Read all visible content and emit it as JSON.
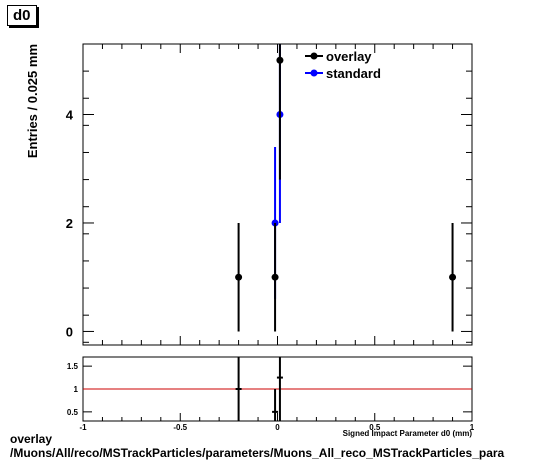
{
  "panel_title": "d0",
  "footer": {
    "line1": "overlay",
    "line2": "/Muons/All/reco/MSTrackParticles/parameters/Muons_All_reco_MSTrackParticles_para"
  },
  "chart_data": [
    {
      "type": "scatter",
      "title": "",
      "ylabel": "Entries / 0.025 mm",
      "xlim": [
        -1,
        1
      ],
      "ylim": [
        -0.25,
        5.3
      ],
      "yticks": [
        0,
        2,
        4
      ],
      "grid": false,
      "legend": {
        "position": "top-right",
        "entries": [
          "overlay",
          "standard"
        ]
      },
      "series": [
        {
          "name": "overlay",
          "color": "#000000",
          "points": [
            {
              "x": -0.2,
              "y": 1,
              "err": 1
            },
            {
              "x": -0.0125,
              "y": 1,
              "err": 1
            },
            {
              "x": 0.0125,
              "y": 5,
              "err": 2.2
            },
            {
              "x": 0.9,
              "y": 1,
              "err": 1
            }
          ]
        },
        {
          "name": "standard",
          "color": "#0000ff",
          "points": [
            {
              "x": -0.0125,
              "y": 2,
              "err": 1.4
            },
            {
              "x": 0.0125,
              "y": 4,
              "err": 2
            }
          ]
        }
      ]
    },
    {
      "type": "scatter",
      "title": "",
      "xlabel": "Signed Impact Parameter d0 (mm)",
      "xlim": [
        -1,
        1
      ],
      "xticks": [
        -1,
        -0.5,
        0,
        0.5,
        1
      ],
      "xtick_labels": [
        "-1",
        "-0.5",
        "0",
        "0.5",
        "1"
      ],
      "ylim": [
        0.3,
        1.7
      ],
      "yticks": [
        0.5,
        1,
        1.5
      ],
      "ytick_labels": [
        "0.5",
        "1",
        "1.5"
      ],
      "reference_line": {
        "y": 1,
        "color": "#cc0000"
      },
      "points": [
        {
          "x": -0.2,
          "y": 1,
          "err": 1
        },
        {
          "x": -0.0125,
          "y": 0.5,
          "err": 0.5
        },
        {
          "x": 0.0125,
          "y": 1.25,
          "err": 0.95
        }
      ]
    }
  ]
}
